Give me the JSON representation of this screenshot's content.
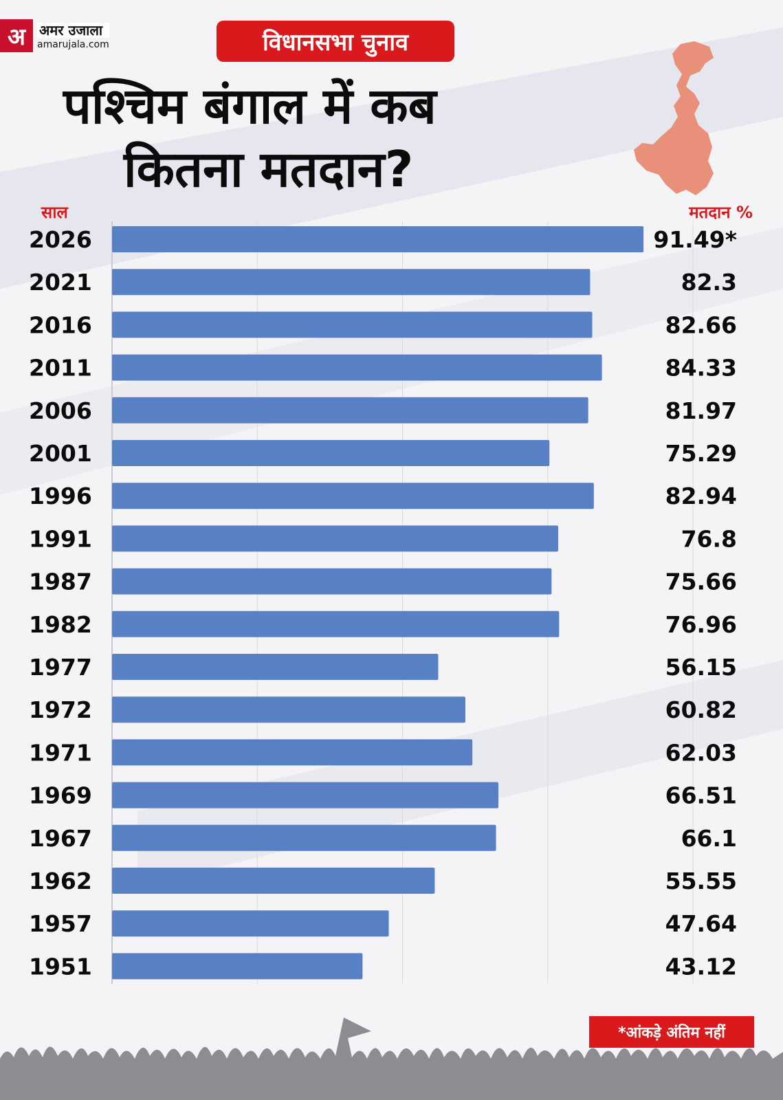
{
  "brand": {
    "mark": "अ",
    "name": "अमर उजाला",
    "url": "amarujala.com"
  },
  "badge": "विधानसभा चुनाव",
  "title": {
    "line1": "पश्चिम बंगाल में कब",
    "line2": "कितना मतदान?"
  },
  "headers": {
    "year": "साल",
    "turnout": "मतदान %"
  },
  "footnote": "*आंकड़े अंतिम नहीं",
  "colors": {
    "bar": "#5880c4",
    "accent": "#d9191b",
    "map": "#e8907a",
    "text": "#0b0b0b"
  },
  "chart_data": {
    "type": "bar",
    "orientation": "horizontal",
    "title": "पश्चिम बंगाल में कब कितना मतदान?",
    "xlabel": "मतदान %",
    "ylabel": "साल",
    "xlim": [
      0,
      100
    ],
    "grid": true,
    "categories": [
      "2026",
      "2021",
      "2016",
      "2011",
      "2006",
      "2001",
      "1996",
      "1991",
      "1987",
      "1982",
      "1977",
      "1972",
      "1971",
      "1969",
      "1967",
      "1962",
      "1957",
      "1951"
    ],
    "values": [
      91.49,
      82.3,
      82.66,
      84.33,
      81.97,
      75.29,
      82.94,
      76.8,
      75.66,
      76.96,
      56.15,
      60.82,
      62.03,
      66.51,
      66.1,
      55.55,
      47.64,
      43.12
    ],
    "value_labels": [
      "91.49*",
      "82.3",
      "82.66",
      "84.33",
      "81.97",
      "75.29",
      "82.94",
      "76.8",
      "75.66",
      "76.96",
      "56.15",
      "60.82",
      "62.03",
      "66.51",
      "66.1",
      "55.55",
      "47.64",
      "43.12"
    ]
  }
}
